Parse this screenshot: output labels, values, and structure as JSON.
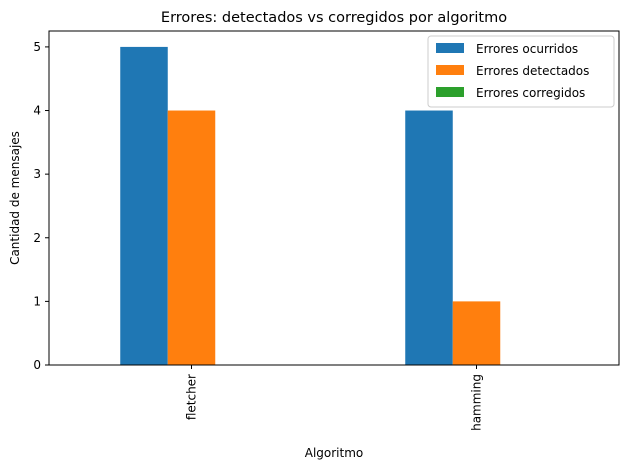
{
  "chart_data": {
    "type": "bar",
    "title": "Errores: detectados vs corregidos por algoritmo",
    "xlabel": "Algoritmo",
    "ylabel": "Cantidad de mensajes",
    "categories": [
      "fletcher",
      "hamming"
    ],
    "series": [
      {
        "name": "Errores ocurridos",
        "values": [
          5,
          4
        ],
        "color": "#1f77b4"
      },
      {
        "name": "Errores detectados",
        "values": [
          4,
          1
        ],
        "color": "#ff7f0e"
      },
      {
        "name": "Errores corregidos",
        "values": [
          0,
          0
        ],
        "color": "#2ca02c"
      }
    ],
    "ylim": [
      0,
      5.25
    ],
    "yticks": [
      0,
      1,
      2,
      3,
      4,
      5
    ],
    "grid": false,
    "legend_position": "top-right"
  }
}
